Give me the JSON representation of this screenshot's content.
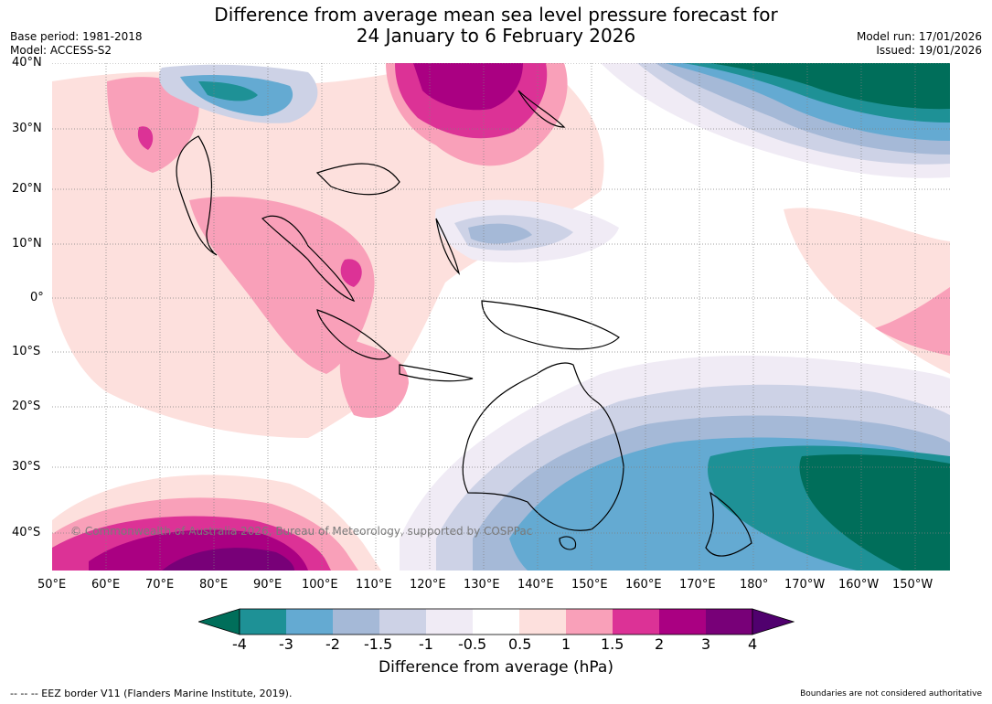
{
  "title": {
    "line1": "Difference from average mean sea level pressure forecast for",
    "line2": "24 January to 6 February 2026"
  },
  "meta": {
    "base_period": "Base period: 1981-2018",
    "model": "Model: ACCESS-S2",
    "model_run": "Model run: 17/01/2026",
    "issued": "Issued: 19/01/2026"
  },
  "map": {
    "lat_labels": [
      "40°N",
      "30°N",
      "20°N",
      "10°N",
      "0°",
      "10°S",
      "20°S",
      "30°S",
      "40°S"
    ],
    "lon_labels": [
      "50°E",
      "60°E",
      "70°E",
      "80°E",
      "90°E",
      "100°E",
      "110°E",
      "120°E",
      "130°E",
      "140°E",
      "150°E",
      "160°E",
      "170°E",
      "180°",
      "170°W",
      "160°W",
      "150°W"
    ],
    "copyright": "© Commonwealth of Australia 2026, Bureau of Meteorology, supported by COSPPac"
  },
  "colorbar": {
    "tick_labels": [
      "-4",
      "-3",
      "-2",
      "-1.5",
      "-1",
      "-0.5",
      "0.5",
      "1",
      "1.5",
      "2",
      "3",
      "4"
    ],
    "colors": [
      "#006e5a",
      "#1e9196",
      "#64aad2",
      "#a5b9d7",
      "#cdd2e6",
      "#f0ebf5",
      "#ffffff",
      "#fde0dd",
      "#f9a0b9",
      "#dc3296",
      "#aa0082",
      "#780078",
      "#50006e"
    ],
    "label": "Difference from average (hPa)"
  },
  "footer": {
    "eez": "--  --  -- EEZ border V11 (Flanders Marine Institute, 2019).",
    "disclaimer": "Boundaries are not considered authoritative"
  }
}
